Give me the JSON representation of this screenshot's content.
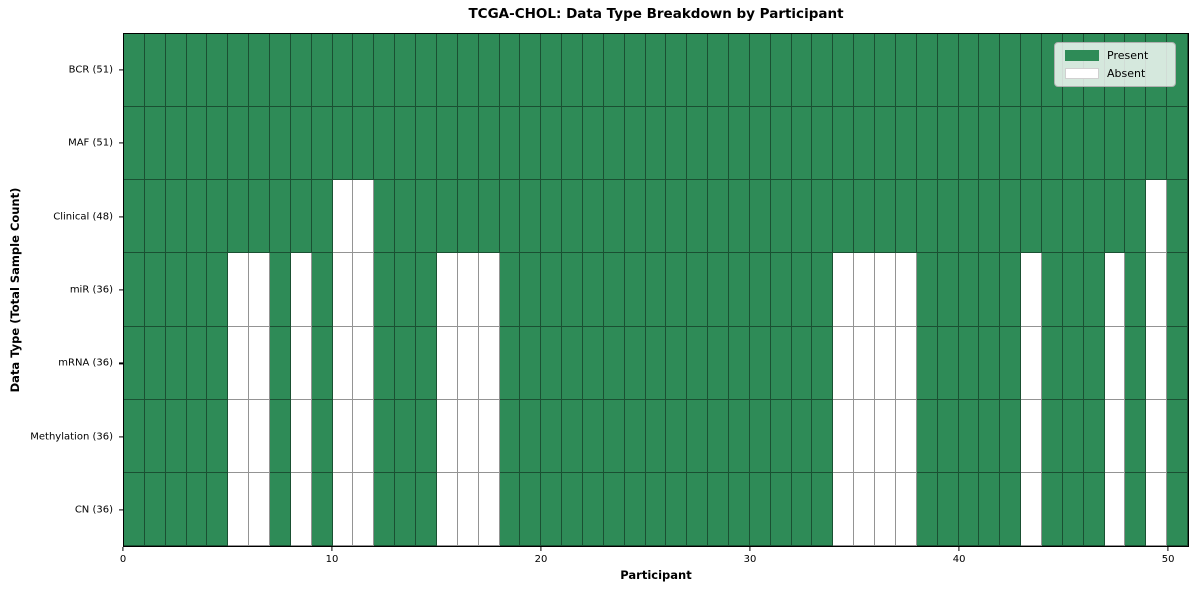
{
  "chart_data": {
    "type": "heatmap",
    "title": "TCGA-CHOL: Data Type Breakdown by Participant",
    "xlabel": "Participant",
    "ylabel": "Data Type (Total Sample Count)",
    "n_participants": 51,
    "x_ticks": [
      0,
      10,
      20,
      30,
      40,
      50
    ],
    "x_range": [
      0,
      51
    ],
    "grid": "cell-borders",
    "legend": {
      "position": "upper-right",
      "present_label": "Present",
      "absent_label": "Absent"
    },
    "colors": {
      "present": "#2e8b57",
      "absent": "#ffffff"
    },
    "rows": [
      {
        "data_type": "BCR",
        "label": "BCR (51)",
        "present_count": 51,
        "absent_participants": []
      },
      {
        "data_type": "MAF",
        "label": "MAF (51)",
        "present_count": 51,
        "absent_participants": []
      },
      {
        "data_type": "Clinical",
        "label": "Clinical (48)",
        "present_count": 48,
        "absent_participants": [
          10,
          11,
          49
        ]
      },
      {
        "data_type": "miR",
        "label": "miR (36)",
        "present_count": 36,
        "absent_participants": [
          5,
          6,
          8,
          10,
          11,
          15,
          16,
          17,
          34,
          35,
          36,
          37,
          43,
          47,
          49
        ]
      },
      {
        "data_type": "mRNA",
        "label": "mRNA (36)",
        "present_count": 36,
        "absent_participants": [
          5,
          6,
          8,
          10,
          11,
          15,
          16,
          17,
          34,
          35,
          36,
          37,
          43,
          47,
          49
        ]
      },
      {
        "data_type": "Methylation",
        "label": "Methylation (36)",
        "present_count": 36,
        "absent_participants": [
          5,
          6,
          8,
          10,
          11,
          15,
          16,
          17,
          34,
          35,
          36,
          37,
          43,
          47,
          49
        ]
      },
      {
        "data_type": "CN",
        "label": "CN (36)",
        "present_count": 36,
        "absent_participants": [
          5,
          6,
          8,
          10,
          11,
          15,
          16,
          17,
          34,
          35,
          36,
          37,
          43,
          47,
          49
        ]
      }
    ]
  }
}
